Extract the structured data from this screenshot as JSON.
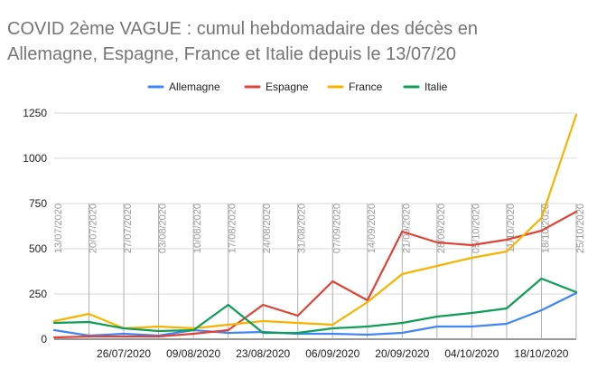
{
  "chart_data": {
    "type": "line",
    "title": "COVID 2ème VAGUE : cumul hebdomadaire des décès en Allemagne, Espagne, France et Italie depuis le 13/07/20",
    "title_lines": [
      "COVID 2ème VAGUE : cumul hebdomadaire des décès en",
      "Allemagne, Espagne, France et Italie depuis le 13/07/20"
    ],
    "legend_position": "top",
    "grid": true,
    "x": [
      "13/07/2020",
      "20/07/2020",
      "27/07/2020",
      "03/08/2020",
      "10/08/2020",
      "17/08/2020",
      "24/08/2020",
      "31/08/2020",
      "07/09/2020",
      "14/09/2020",
      "21/09/2020",
      "28/09/2020",
      "05/10/2020",
      "11/10/2020",
      "18/10/2020",
      "25/10/2020"
    ],
    "x_tick_labels": [
      "26/07/2020",
      "09/08/2020",
      "23/08/2020",
      "06/09/2020",
      "20/09/2020",
      "04/10/2020",
      "18/10/2020"
    ],
    "x_tick_indices": [
      2,
      4,
      6,
      8,
      10,
      12,
      14
    ],
    "ylim": [
      0,
      1250
    ],
    "yticks": [
      0,
      250,
      500,
      750,
      1000,
      1250
    ],
    "series": [
      {
        "name": "Allemagne",
        "color": "#4285f4",
        "values": [
          50,
          20,
          30,
          20,
          50,
          35,
          40,
          30,
          30,
          25,
          35,
          70,
          70,
          85,
          160,
          255
        ]
      },
      {
        "name": "Espagne",
        "color": "#db4437",
        "values": [
          10,
          15,
          15,
          15,
          30,
          50,
          190,
          130,
          320,
          215,
          595,
          535,
          520,
          550,
          600,
          705
        ]
      },
      {
        "name": "France",
        "color": "#f4b400",
        "values": [
          100,
          140,
          60,
          70,
          60,
          80,
          100,
          90,
          80,
          205,
          360,
          405,
          450,
          485,
          670,
          1240
        ]
      },
      {
        "name": "Italie",
        "color": "#0f9d58",
        "values": [
          90,
          95,
          60,
          45,
          50,
          190,
          35,
          35,
          60,
          70,
          90,
          125,
          145,
          170,
          335,
          260
        ]
      }
    ]
  }
}
